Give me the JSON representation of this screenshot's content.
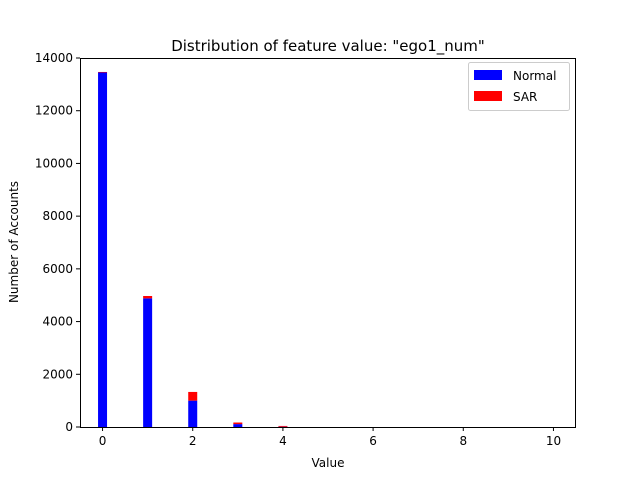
{
  "chart_data": {
    "type": "bar",
    "stacked": true,
    "title": "Distribution of feature value: \"ego1_num\"",
    "xlabel": "Value",
    "ylabel": "Number of Accounts",
    "xlim": [
      -0.5,
      10.5
    ],
    "ylim": [
      0,
      14000
    ],
    "xticks": [
      0,
      2,
      4,
      6,
      8,
      10
    ],
    "yticks": [
      0,
      2000,
      4000,
      6000,
      8000,
      10000,
      12000,
      14000
    ],
    "grid": false,
    "legend_position": "top-right",
    "x": [
      0,
      1,
      2,
      3,
      4
    ],
    "series": [
      {
        "name": "Normal",
        "color": "#0000ff",
        "values": [
          13450,
          4880,
          1000,
          110,
          10
        ]
      },
      {
        "name": "SAR",
        "color": "#ff0000",
        "values": [
          20,
          90,
          330,
          60,
          30
        ]
      }
    ]
  }
}
